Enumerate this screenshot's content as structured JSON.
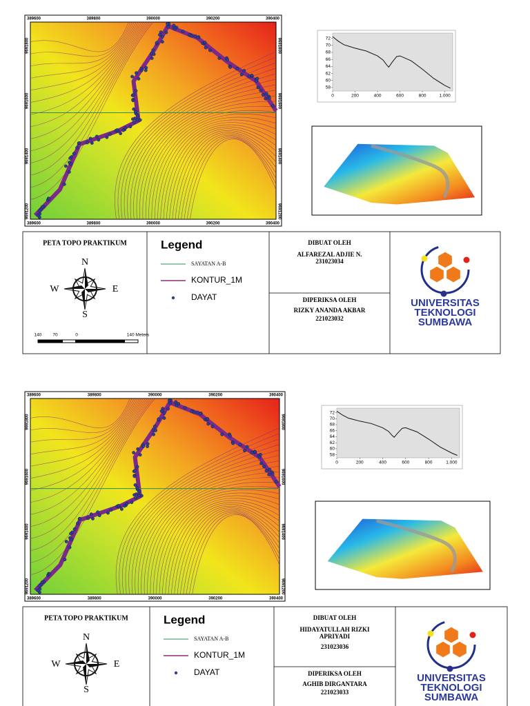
{
  "sheets": [
    {
      "map": {
        "x_labels": [
          "389600",
          "389800",
          "390000",
          "390200",
          "390400"
        ],
        "y_labels": [
          "9691800",
          "9691600",
          "9691400",
          "9691200"
        ]
      },
      "profile": {
        "type": "line",
        "x": [
          0,
          50,
          100,
          200,
          300,
          400,
          450,
          480,
          500,
          530,
          570,
          600,
          700,
          800,
          900,
          1000,
          1050
        ],
        "y": [
          72.5,
          71.2,
          70.2,
          69.2,
          68.4,
          67,
          65.8,
          64.5,
          63.8,
          65.2,
          66.8,
          67,
          65.6,
          63.2,
          60.6,
          58.6,
          57.8
        ],
        "xlim": [
          0,
          1070
        ],
        "ylim": [
          57,
          73.5
        ],
        "xticks": [
          0,
          200,
          400,
          600,
          800,
          {
            "value": 1000,
            "label": "1.000"
          }
        ],
        "yticks": [
          58,
          60,
          62,
          64,
          66,
          68,
          70,
          72
        ]
      },
      "panel": {
        "title": "PETA TOPO PRAKTIKUM",
        "compass": {
          "n": "N",
          "e": "E",
          "s": "S",
          "w": "W"
        },
        "scale_labels": [
          "140",
          "70",
          "0",
          "140 Meters"
        ],
        "legend_title": "Legend",
        "legend_items": [
          "SAYATAN A-B",
          "KONTUR_1M",
          "DAYAT"
        ],
        "made_by_label": "DIBUAT OLEH",
        "made_by_name": [
          "ALFAREZAL ADJIE N."
        ],
        "made_by_id": "231023034",
        "checked_label": "DIPERIKSA OLEH",
        "checked_name": "RIZKY ANANDA AKBAR",
        "checked_id": "221023032",
        "university": [
          "UNIVERSITAS",
          "TEKNOLOGI",
          "SUMBAWA"
        ]
      }
    },
    {
      "map": {
        "x_labels": [
          "389600",
          "389800",
          "390000",
          "390200",
          "390400"
        ],
        "y_labels": [
          "9691800",
          "9691600",
          "9691400",
          "9691200"
        ]
      },
      "profile": {
        "type": "line",
        "x": [
          0,
          50,
          100,
          200,
          300,
          400,
          450,
          480,
          500,
          530,
          570,
          600,
          700,
          800,
          900,
          1000,
          1050
        ],
        "y": [
          72.5,
          71.2,
          70.2,
          69.2,
          68.4,
          67,
          65.8,
          64.5,
          63.8,
          65.2,
          66.8,
          67,
          65.6,
          63.2,
          60.6,
          58.6,
          57.8
        ],
        "xlim": [
          0,
          1070
        ],
        "ylim": [
          57,
          73.5
        ],
        "xticks": [
          0,
          200,
          400,
          600,
          800,
          {
            "value": 1000,
            "label": "1.000"
          }
        ],
        "yticks": [
          58,
          60,
          62,
          64,
          66,
          68,
          70,
          72
        ]
      },
      "panel": {
        "title": "PETA TOPO PRAKTIKUM",
        "compass": {
          "n": "N",
          "e": "E",
          "s": "S",
          "w": "W"
        },
        "legend_title": "Legend",
        "legend_items": [
          "SAYATAN A-B",
          "KONTUR_1M",
          "DAYAT"
        ],
        "made_by_label": "DIBUAT OLEH",
        "made_by_name": [
          "HIDAYATULLAH RIZKI",
          "APRIYADI"
        ],
        "made_by_id": "231023036",
        "checked_label": "DIPERIKSA OLEH",
        "checked_name": "AGHIB DIRGANTARA",
        "checked_id": "221023033",
        "university": [
          "UNIVERSITAS",
          "TEKNOLOGI",
          "SUMBAWA"
        ]
      }
    }
  ]
}
